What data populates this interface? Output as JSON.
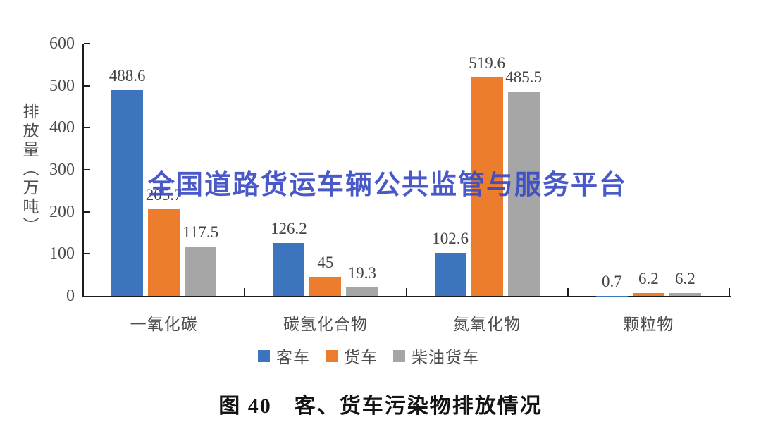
{
  "watermark": {
    "text": "全国道路货运车辆公共监管与服务平台",
    "color": "#3a4bc4"
  },
  "caption": {
    "text": "图 40　客、货车污染物排放情况"
  },
  "chart_data": {
    "type": "bar",
    "title": "",
    "xlabel": "",
    "ylabel": "排放量（万吨）",
    "ylim": [
      0,
      600
    ],
    "yticks": [
      0,
      100,
      200,
      300,
      400,
      500,
      600
    ],
    "grid": false,
    "legend_position": "bottom",
    "categories": [
      "一氧化碳",
      "碳氢化合物",
      "氮氧化物",
      "颗粒物"
    ],
    "series": [
      {
        "key": "passenger-car",
        "name": "客车",
        "color": "#3d74be",
        "values": [
          488.6,
          126.2,
          102.6,
          0.7
        ]
      },
      {
        "key": "truck",
        "name": "货车",
        "color": "#ec7d2d",
        "values": [
          205.7,
          45,
          519.6,
          6.2
        ]
      },
      {
        "key": "diesel-truck",
        "name": "柴油货车",
        "color": "#a6a6a6",
        "values": [
          117.5,
          19.3,
          485.5,
          6.2
        ]
      }
    ]
  }
}
